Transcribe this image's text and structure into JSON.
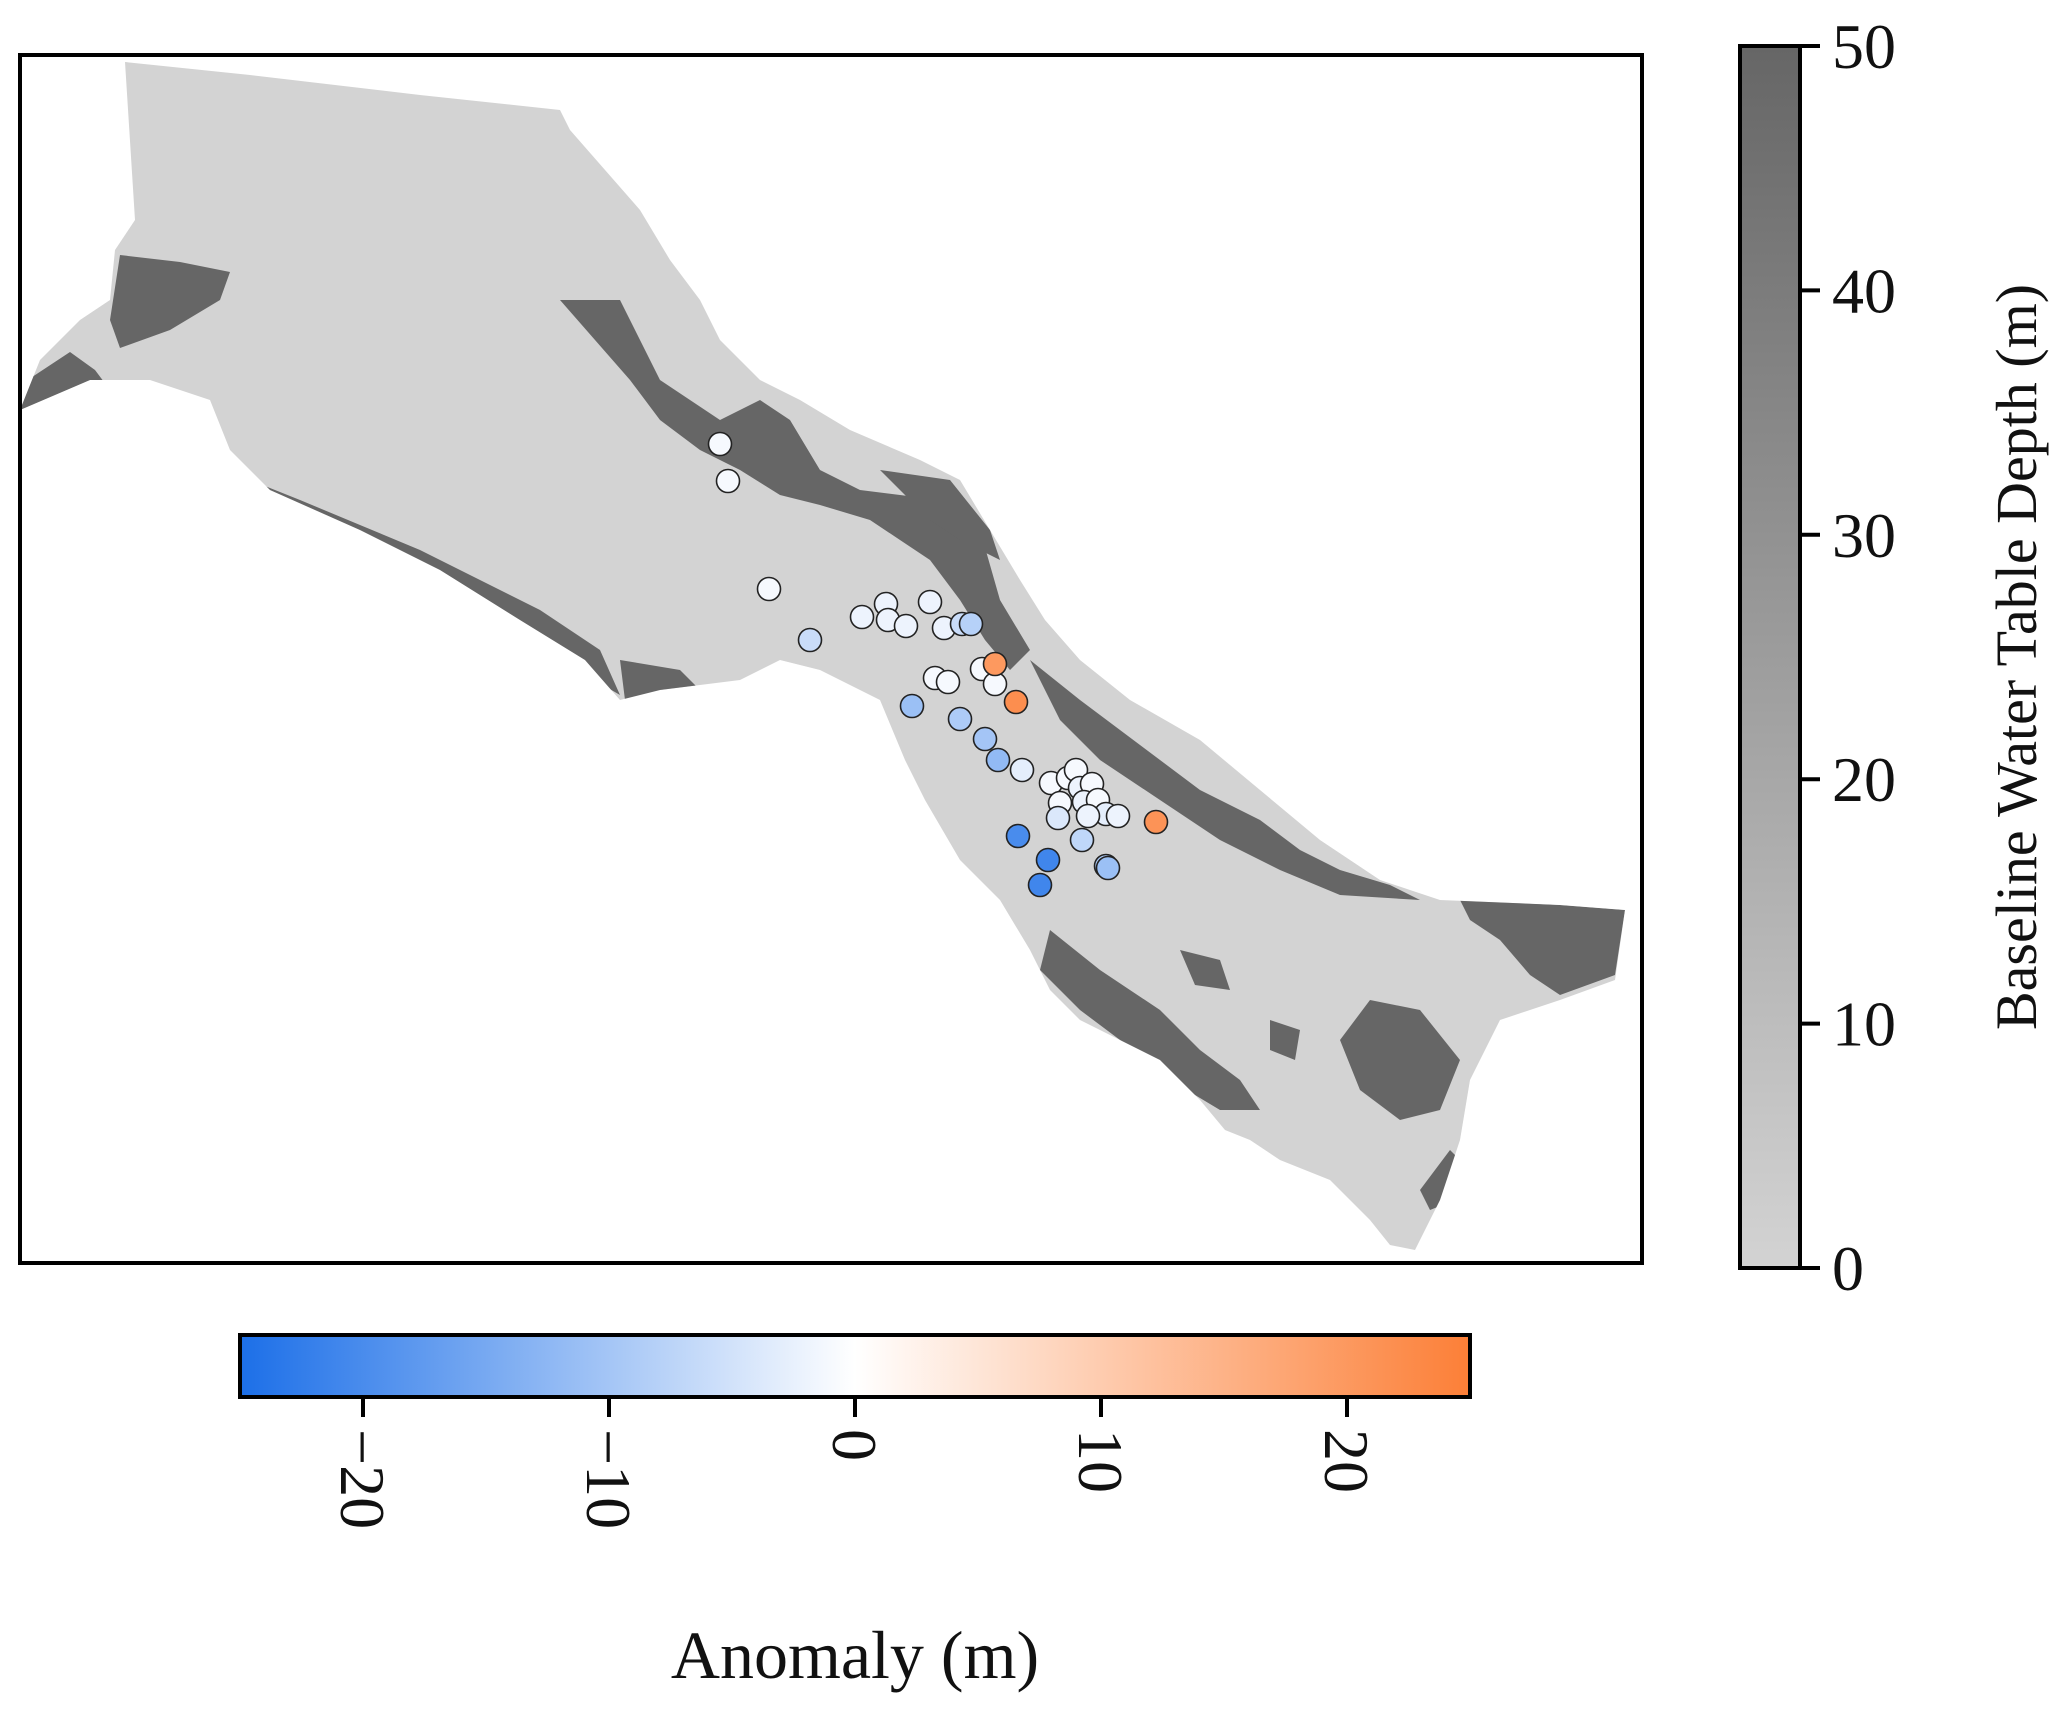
{
  "figure": {
    "colors": {
      "background": "#ffffff",
      "shallow_gray": "#d3d3d3",
      "deep_gray": "#666666",
      "anomaly_negative": "#1c6fe8",
      "anomaly_zero": "#ffffff",
      "anomaly_positive": "#fc7f37",
      "frame": "#000000"
    }
  },
  "colorbar_depth": {
    "label": "Baseline Water Table Depth (m)",
    "range": [
      0,
      50
    ],
    "ticks": [
      {
        "value": 0,
        "label": "0"
      },
      {
        "value": 10,
        "label": "10"
      },
      {
        "value": 20,
        "label": "20"
      },
      {
        "value": 30,
        "label": "30"
      },
      {
        "value": 40,
        "label": "40"
      },
      {
        "value": 50,
        "label": "50"
      }
    ]
  },
  "colorbar_anomaly": {
    "label": "Anomaly (m)",
    "range": [
      -25,
      25
    ],
    "ticks": [
      {
        "value": -20,
        "label": "−20"
      },
      {
        "value": -10,
        "label": "−10"
      },
      {
        "value": 0,
        "label": "0"
      },
      {
        "value": 10,
        "label": "10"
      },
      {
        "value": 20,
        "label": "20"
      }
    ]
  },
  "chart_data": {
    "type": "scatter",
    "description_scale": "wells colored by water table anomaly (m) over basin map of baseline depth",
    "points": [
      {
        "anomaly": -1
      },
      {
        "anomaly": -1
      },
      {
        "anomaly": -1
      },
      {
        "anomaly": -6
      },
      {
        "anomaly": -2
      },
      {
        "anomaly": -2
      },
      {
        "anomaly": -2
      },
      {
        "anomaly": -2
      },
      {
        "anomaly": -2
      },
      {
        "anomaly": -2
      },
      {
        "anomaly": -6
      },
      {
        "anomaly": -8
      },
      {
        "anomaly": -1
      },
      {
        "anomaly": -1
      },
      {
        "anomaly": -1
      },
      {
        "anomaly": -1
      },
      {
        "anomaly": 20
      },
      {
        "anomaly": 22
      },
      {
        "anomaly": -11
      },
      {
        "anomaly": -9
      },
      {
        "anomaly": -10
      },
      {
        "anomaly": -12
      },
      {
        "anomaly": -3
      },
      {
        "anomaly": -1
      },
      {
        "anomaly": -1
      },
      {
        "anomaly": -1
      },
      {
        "anomaly": -2
      },
      {
        "anomaly": -1
      },
      {
        "anomaly": -1
      },
      {
        "anomaly": -2
      },
      {
        "anomaly": -1
      },
      {
        "anomaly": -3
      },
      {
        "anomaly": -2
      },
      {
        "anomaly": -4
      },
      {
        "anomaly": -2
      },
      {
        "anomaly": -7
      },
      {
        "anomaly": -9
      },
      {
        "anomaly": 21
      },
      {
        "anomaly": -20
      },
      {
        "anomaly": -21
      },
      {
        "anomaly": -21
      },
      {
        "anomaly": -11
      }
    ]
  }
}
